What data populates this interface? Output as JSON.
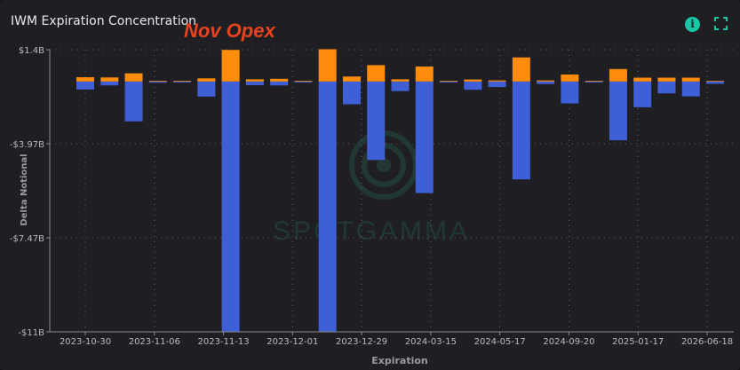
{
  "header": {
    "title": "IWM Expiration Concentration",
    "annotation": "Nov Opex",
    "info_icon": "info-icon",
    "info_glyph": "i",
    "expand_icon": "expand-icon"
  },
  "colors": {
    "call": "#ff8c0a",
    "put": "#3f5fd6",
    "accent": "#19c7a7",
    "annotation": "#e8431f"
  },
  "watermark": "SPOTGAMMA",
  "chart_data": {
    "type": "bar",
    "stacked": true,
    "xlabel": "Expiration",
    "ylabel": "Delta Notional",
    "ylim": [
      -11,
      1.4
    ],
    "yticks": [
      "$1.4B",
      "-$3.97B",
      "-$7.47B",
      "-$11B"
    ],
    "xticks": [
      "2023-10-30",
      "2023-11-06",
      "2023-11-13",
      "2023-12-01",
      "2023-12-29",
      "2024-03-15",
      "2024-05-17",
      "2024-09-20",
      "2025-01-17",
      "2026-06-18"
    ],
    "grid": true,
    "legend": "none",
    "series": [
      {
        "color": "call",
        "values": [
          0.19,
          0.18,
          0.36,
          0.03,
          0.03,
          0.14,
          1.39,
          0.1,
          0.12,
          0.03,
          1.42,
          0.22,
          0.72,
          0.1,
          0.66,
          0.03,
          0.09,
          0.05,
          1.06,
          0.05,
          0.31,
          0.03,
          0.55,
          0.17,
          0.17,
          0.17,
          0.03
        ]
      },
      {
        "color": "put",
        "values": [
          -0.35,
          -0.17,
          -1.75,
          -0.05,
          -0.04,
          -0.66,
          -11,
          -0.16,
          -0.17,
          -0.04,
          -11,
          -1.0,
          -3.45,
          -0.42,
          -4.9,
          -0.04,
          -0.36,
          -0.24,
          -4.3,
          -0.11,
          -0.96,
          -0.04,
          -2.58,
          -1.13,
          -0.52,
          -0.65,
          -0.1
        ]
      }
    ]
  }
}
